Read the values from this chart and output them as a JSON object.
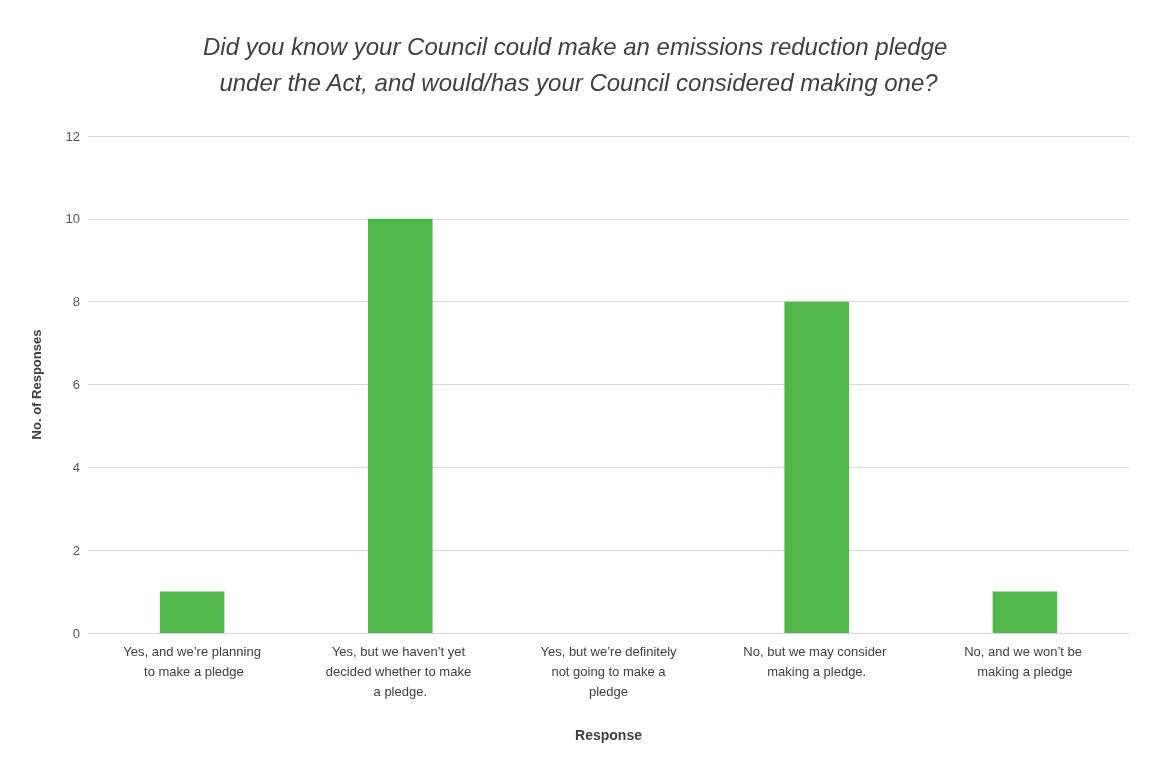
{
  "chart_data": {
    "type": "bar",
    "title": "Did you know your Council could make an emissions reduction pledge under the Act, and would/has your Council considered making one?",
    "xlabel": "Response",
    "ylabel": "No. of Responses",
    "categories": [
      "Yes, and we’re planning to make a pledge",
      "Yes, but we haven’t yet decided whether to make a pledge.",
      "Yes, but we’re definitely not going to make a pledge",
      "No, but we may consider making a pledge.",
      "No, and we won’t be making a pledge"
    ],
    "values": [
      1,
      10,
      0,
      8,
      1
    ],
    "color": "#50b848",
    "ylim": [
      0,
      12
    ],
    "yticks": [
      0,
      2,
      4,
      6,
      8,
      10,
      12
    ],
    "grid": "y"
  }
}
